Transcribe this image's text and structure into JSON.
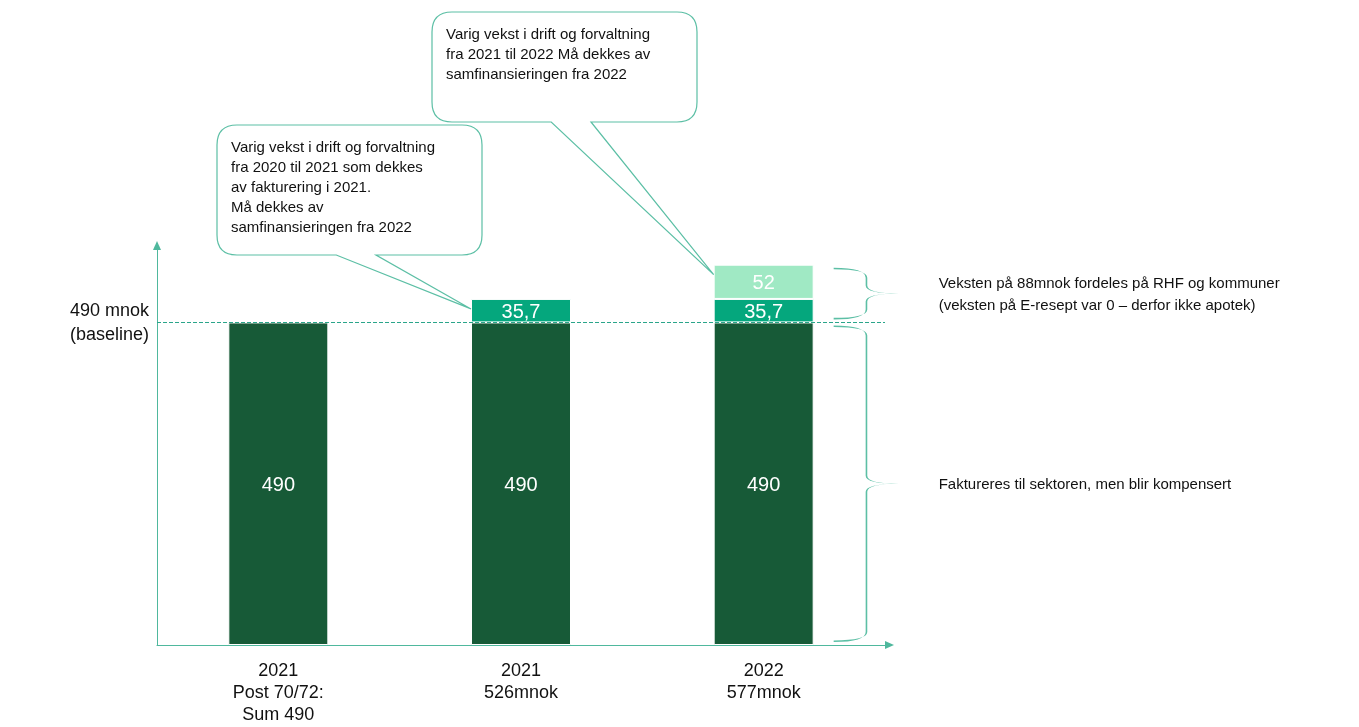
{
  "chart_data": {
    "type": "bar",
    "stacked": true,
    "categories": [
      "2021\nPost 70/72:\nSum 490",
      "2021\n526mnok",
      "2022\n577mnok"
    ],
    "series": [
      {
        "color": "#175a37",
        "values": [
          490,
          490,
          490
        ],
        "value_labels": [
          "490",
          "490",
          "490"
        ]
      },
      {
        "color": "#05a77d",
        "values": [
          null,
          35.7,
          35.7
        ],
        "value_labels": [
          null,
          "35,7",
          "35,7"
        ]
      },
      {
        "color": "#a0e9c4",
        "values": [
          null,
          null,
          52
        ],
        "value_labels": [
          null,
          null,
          "52"
        ]
      }
    ],
    "ref_lines": [
      {
        "axis": "y",
        "value": 490,
        "label": "490 mnok\n(baseline)",
        "color": "#2aa58a",
        "line_style": "dashed"
      }
    ],
    "annotations": [
      "Varig vekst i drift og forvaltning\nfra 2020 til 2021 som dekkes\nav fakturering  i 2021.\nMå dekkes av\nsamfinansieringen  fra 2022",
      "Varig vekst i drift og forvaltning\nfra 2021 til 2022 Må dekkes av\nsamfinansieringen  fra 2022",
      "Veksten på 88mnok fordeles på RHF og kommuner\n(veksten på E-resept var 0 – derfor ikke apotek)",
      "Faktureres til sektoren, men blir kompensert"
    ],
    "tick_labels": "x",
    "grid": false
  }
}
